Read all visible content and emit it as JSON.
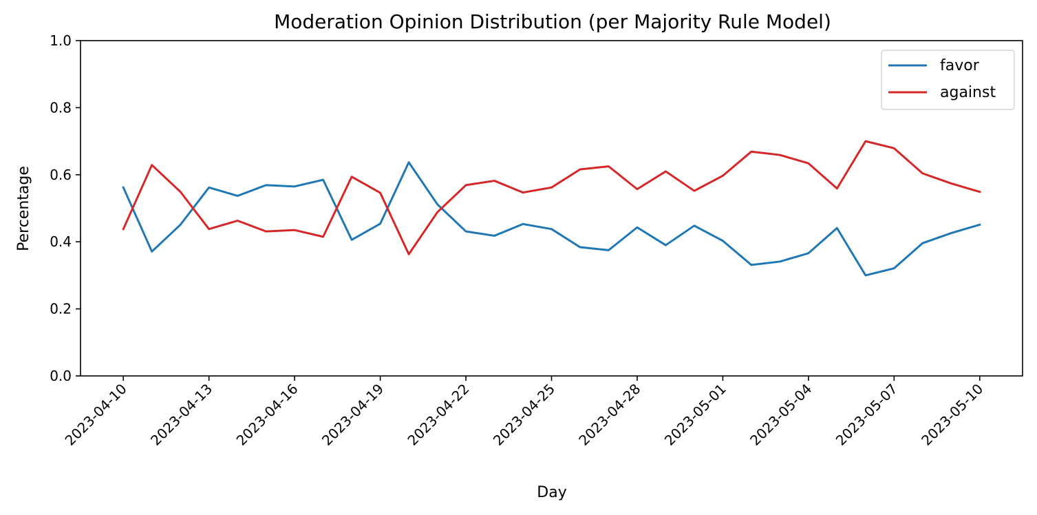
{
  "chart_data": {
    "type": "line",
    "title": "Moderation Opinion Distribution (per Majority Rule Model)",
    "xlabel": "Day",
    "ylabel": "Percentage",
    "ylim": [
      0,
      1
    ],
    "yticks": [
      "0.0",
      "0.2",
      "0.4",
      "0.6",
      "0.8",
      "1.0"
    ],
    "xlim": [
      "2023-04-10",
      "2023-05-10"
    ],
    "xtick_labels": [
      "2023-04-10",
      "2023-04-13",
      "2023-04-16",
      "2023-04-19",
      "2023-04-22",
      "2023-04-25",
      "2023-04-28",
      "2023-05-01",
      "2023-05-04",
      "2023-05-07",
      "2023-05-10"
    ],
    "grid": false,
    "legend_position": "top-right",
    "x": [
      "2023-04-10",
      "2023-04-11",
      "2023-04-12",
      "2023-04-13",
      "2023-04-14",
      "2023-04-15",
      "2023-04-16",
      "2023-04-17",
      "2023-04-18",
      "2023-04-19",
      "2023-04-20",
      "2023-04-21",
      "2023-04-22",
      "2023-04-23",
      "2023-04-24",
      "2023-04-25",
      "2023-04-26",
      "2023-04-27",
      "2023-04-28",
      "2023-04-29",
      "2023-04-30",
      "2023-05-01",
      "2023-05-02",
      "2023-05-03",
      "2023-05-04",
      "2023-05-05",
      "2023-05-06",
      "2023-05-07",
      "2023-05-08",
      "2023-05-09",
      "2023-05-10"
    ],
    "series": [
      {
        "name": "favor",
        "color": "#1f77b4",
        "values": [
          0.562,
          0.371,
          0.451,
          0.562,
          0.537,
          0.569,
          0.565,
          0.585,
          0.406,
          0.454,
          0.637,
          0.512,
          0.431,
          0.418,
          0.453,
          0.438,
          0.384,
          0.375,
          0.443,
          0.39,
          0.448,
          0.403,
          0.331,
          0.341,
          0.366,
          0.441,
          0.3,
          0.321,
          0.396,
          0.426,
          0.451
        ]
      },
      {
        "name": "against",
        "color": "#d62728",
        "values": [
          0.438,
          0.629,
          0.549,
          0.438,
          0.463,
          0.431,
          0.435,
          0.415,
          0.594,
          0.546,
          0.363,
          0.488,
          0.569,
          0.582,
          0.547,
          0.562,
          0.616,
          0.625,
          0.557,
          0.61,
          0.552,
          0.597,
          0.669,
          0.659,
          0.634,
          0.559,
          0.7,
          0.679,
          0.604,
          0.574,
          0.549
        ]
      }
    ]
  }
}
